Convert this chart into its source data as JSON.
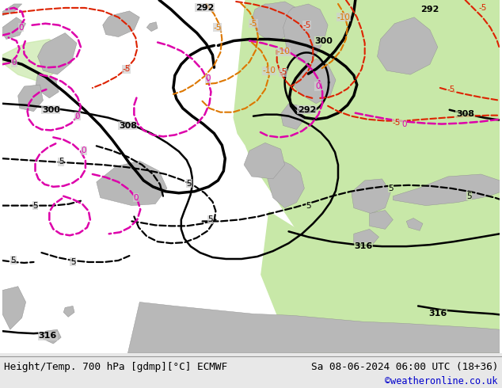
{
  "title_left": "Height/Temp. 700 hPa [gdmp][°C] ECMWF",
  "title_right": "Sa 08-06-2024 06:00 UTC (18+36)",
  "credit": "©weatheronline.co.uk",
  "bg_grey": "#d0d0d0",
  "land_green": "#c8e8a8",
  "land_grey": "#b8b8b8",
  "fig_width": 6.34,
  "fig_height": 4.9,
  "dpi": 100,
  "bar_color": "#e8e8e8",
  "credit_color": "#0000cc"
}
